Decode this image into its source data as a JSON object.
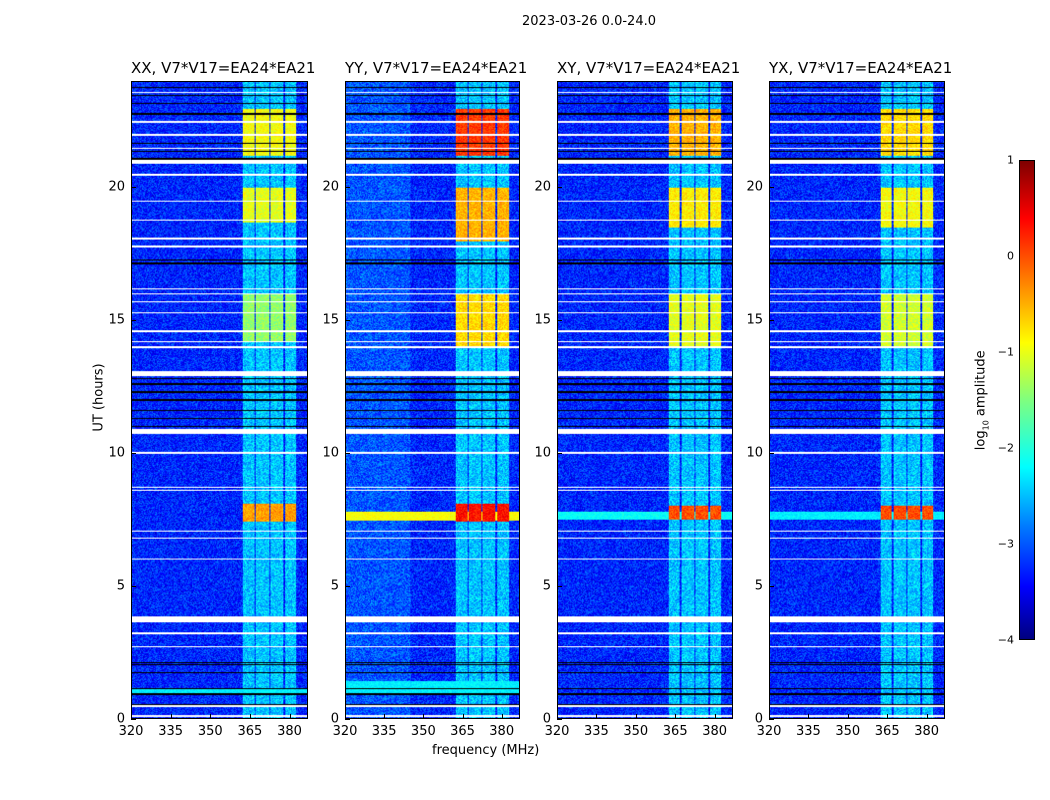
{
  "chart_data": {
    "type": "heatmap",
    "title": "2023-03-26 0.0-24.0",
    "xlabel": "frequency (MHz)",
    "ylabel": "UT (hours)",
    "xlim": [
      320,
      387
    ],
    "ylim": [
      0,
      24
    ],
    "xticks": [
      "320",
      "335",
      "350",
      "365",
      "380"
    ],
    "xtick_values": [
      320,
      335,
      350,
      365,
      380
    ],
    "yticks": [
      "0",
      "5",
      "10",
      "15",
      "20"
    ],
    "ytick_values": [
      0,
      5,
      10,
      15,
      20
    ],
    "colorbar": {
      "label_prefix": "log",
      "label_sub": "10",
      "label_suffix": " amplitude",
      "range": [
        -4,
        1
      ],
      "ticks": [
        "1",
        "0",
        "−1",
        "−2",
        "−3",
        "−4"
      ],
      "tick_values": [
        1,
        0,
        -1,
        -2,
        -3,
        -4
      ],
      "colormap": "jet"
    },
    "background_level": -3.2,
    "rfi_channel_blocks_mhz": [
      [
        362.5,
        367
      ],
      [
        367.5,
        372.5
      ],
      [
        373,
        378
      ],
      [
        378.5,
        383
      ]
    ],
    "flagged_bands_hours": [
      [
        0.05,
        0.12
      ],
      [
        3.62,
        3.82
      ],
      [
        10.72,
        10.92
      ],
      [
        12.92,
        13.1
      ],
      [
        20.92,
        21.06
      ]
    ],
    "flagged_lines_hours": [
      0.45,
      2.7,
      3.2,
      6.0,
      6.8,
      7.05,
      8.6,
      8.7,
      10.0,
      14.0,
      14.2,
      14.6,
      15.3,
      15.7,
      16.0,
      16.2,
      17.8,
      18.1,
      18.8,
      19.5,
      20.5,
      21.5,
      22.0,
      22.5,
      23.6
    ],
    "black_lines_hours": [
      0.5,
      0.9,
      1.1,
      1.7,
      2.0,
      2.1,
      11.0,
      11.3,
      11.6,
      12.0,
      12.3,
      12.6,
      12.8,
      17.15,
      17.3,
      21.1,
      21.4,
      21.7,
      22.8,
      23.2,
      23.5,
      23.8
    ],
    "panels": [
      {
        "title": "XX, V7*V17=EA24*EA21",
        "bright_intervals": [
          [
            7.4,
            8.1,
            -0.4
          ],
          [
            14.2,
            16.0,
            -1.4
          ],
          [
            18.7,
            20.0,
            -1.0
          ],
          [
            21.2,
            23.0,
            -0.9
          ]
        ],
        "broadband": [
          [
            0.9,
            1.1,
            -2.2
          ]
        ]
      },
      {
        "title": "YY, V7*V17=EA24*EA21",
        "bright_intervals": [
          [
            7.4,
            8.1,
            0.3
          ],
          [
            14.0,
            16.0,
            -0.7
          ],
          [
            18.0,
            20.0,
            -0.5
          ],
          [
            21.2,
            23.0,
            0.1
          ]
        ],
        "broadband": [
          [
            7.45,
            7.8,
            -0.9
          ],
          [
            0.9,
            1.4,
            -2.2
          ]
        ]
      },
      {
        "title": "XY, V7*V17=EA24*EA21",
        "bright_intervals": [
          [
            7.5,
            8.0,
            0.0
          ],
          [
            14.0,
            16.0,
            -1.0
          ],
          [
            18.5,
            20.0,
            -0.8
          ],
          [
            21.2,
            23.0,
            -0.5
          ]
        ],
        "broadband": [
          [
            7.5,
            7.8,
            -2.1
          ]
        ]
      },
      {
        "title": "YX, V7*V17=EA24*EA21",
        "bright_intervals": [
          [
            7.5,
            8.0,
            0.0
          ],
          [
            14.0,
            16.0,
            -1.1
          ],
          [
            18.5,
            20.0,
            -0.9
          ],
          [
            21.2,
            23.0,
            -0.7
          ]
        ],
        "broadband": [
          [
            7.5,
            7.8,
            -2.2
          ]
        ]
      }
    ]
  }
}
